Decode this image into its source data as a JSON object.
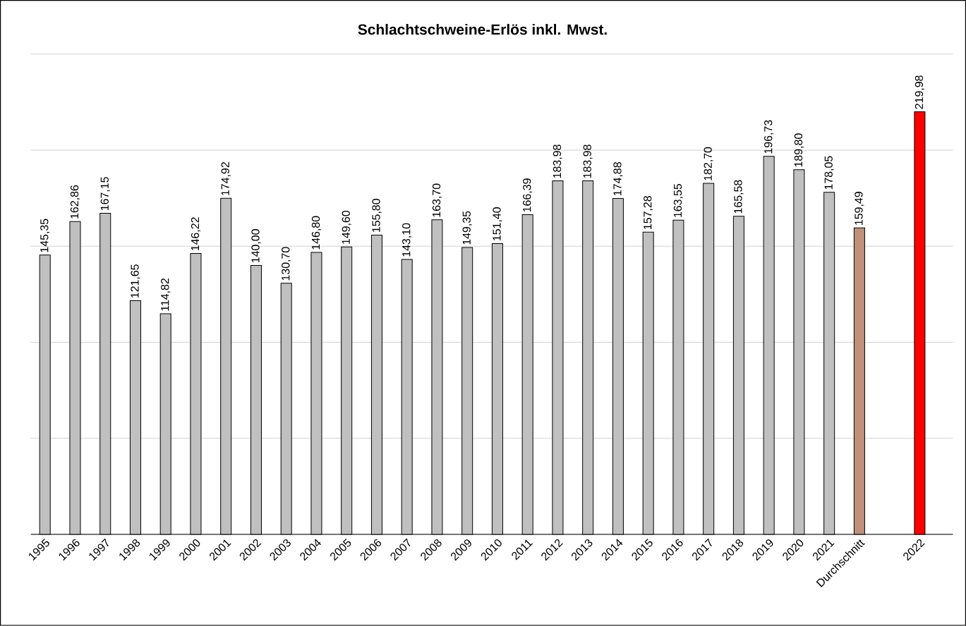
{
  "chart_data": {
    "type": "bar",
    "title": "Schlachtschweine-Erlös  inkl. Mwst.",
    "categories": [
      "1995",
      "1996",
      "1997",
      "1998",
      "1999",
      "2000",
      "2001",
      "2002",
      "2003",
      "2004",
      "2005",
      "2006",
      "2007",
      "2008",
      "2009",
      "2010",
      "2011",
      "2012",
      "2013",
      "2014",
      "2015",
      "2016",
      "2017",
      "2018",
      "2019",
      "2020",
      "2021",
      "Durchschnitt",
      null,
      "2022"
    ],
    "values": [
      145.35,
      162.86,
      167.15,
      121.65,
      114.82,
      146.22,
      174.92,
      140.0,
      130.7,
      146.8,
      149.6,
      155.8,
      143.1,
      163.7,
      149.35,
      151.4,
      166.39,
      183.98,
      183.98,
      174.88,
      157.28,
      163.55,
      182.7,
      165.58,
      196.73,
      189.8,
      178.05,
      159.49,
      null,
      219.98
    ],
    "value_labels": [
      "145,35",
      "162,86",
      "167,15",
      "121,65",
      "114,82",
      "146,22",
      "174,92",
      "140,00",
      "130,70",
      "146,80",
      "149,60",
      "155,80",
      "143,10",
      "163,70",
      "149,35",
      "151,40",
      "166,39",
      "183,98",
      "183,98",
      "174,88",
      "157,28",
      "163,55",
      "182,70",
      "165,58",
      "196,73",
      "189,80",
      "178,05",
      "159,49",
      null,
      "219,98"
    ],
    "colors": [
      "#c0c0c0",
      "#c0c0c0",
      "#c0c0c0",
      "#c0c0c0",
      "#c0c0c0",
      "#c0c0c0",
      "#c0c0c0",
      "#c0c0c0",
      "#c0c0c0",
      "#c0c0c0",
      "#c0c0c0",
      "#c0c0c0",
      "#c0c0c0",
      "#c0c0c0",
      "#c0c0c0",
      "#c0c0c0",
      "#c0c0c0",
      "#c0c0c0",
      "#c0c0c0",
      "#c0c0c0",
      "#c0c0c0",
      "#c0c0c0",
      "#c0c0c0",
      "#c0c0c0",
      "#c0c0c0",
      "#c0c0c0",
      "#c0c0c0",
      "#c0907a",
      null,
      "#ff0000"
    ],
    "ylim": [
      0,
      250
    ],
    "yticks": [
      {
        "value": 0,
        "label": null
      },
      {
        "value": 50,
        "label": null
      },
      {
        "value": 100,
        "label": null
      },
      {
        "value": 150,
        "label": null
      },
      {
        "value": 200,
        "label": null
      },
      {
        "value": 250,
        "label": null
      }
    ],
    "grid": "y",
    "tick_labels": "x"
  }
}
